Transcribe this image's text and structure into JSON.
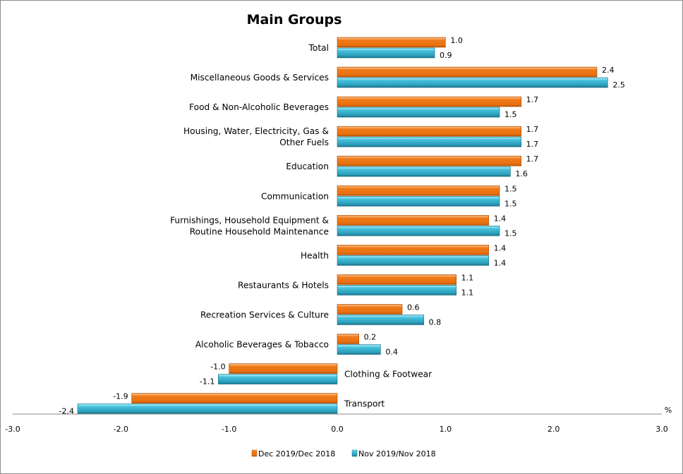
{
  "chart_data": {
    "type": "bar",
    "orientation": "horizontal",
    "title": "Main Groups",
    "xlabel": "",
    "ylabel": "",
    "unit_label": "%",
    "xlim": [
      -3.0,
      3.0
    ],
    "x_ticks": [
      "-3.0",
      "-2.0",
      "-1.0",
      "0.0",
      "1.0",
      "2.0",
      "3.0"
    ],
    "x_tick_values": [
      -3,
      -2,
      -1,
      0,
      1,
      2,
      3
    ],
    "grid": false,
    "legend_position": "bottom",
    "categories": [
      [
        "Total"
      ],
      [
        "Miscellaneous Goods & Services"
      ],
      [
        "Food &  Non-Alcoholic Beverages"
      ],
      [
        "Housing, Water, Electricity, Gas &",
        "Other Fuels"
      ],
      [
        "Education"
      ],
      [
        "Communication"
      ],
      [
        "Furnishings, Household Equipment &",
        "Routine Household Maintenance"
      ],
      [
        "Health"
      ],
      [
        "Restaurants & Hotels"
      ],
      [
        "Recreation Services & Culture"
      ],
      [
        "Alcoholic Beverages  & Tobacco"
      ],
      [
        "Clothing & Footwear"
      ],
      [
        "Transport"
      ]
    ],
    "series": [
      {
        "name": "Dec 2019/Dec 2018",
        "color": "#f07a1a",
        "values": [
          1.0,
          2.4,
          1.7,
          1.7,
          1.7,
          1.5,
          1.4,
          1.4,
          1.1,
          0.6,
          0.2,
          -1.0,
          -1.9
        ],
        "labels": [
          "1.0",
          "2.4",
          "1.7",
          "1.7",
          "1.7",
          "1.5",
          "1.4",
          "1.4",
          "1.1",
          "0.6",
          "0.2",
          "-1.0",
          "-1.9"
        ]
      },
      {
        "name": "Nov 2019/Nov 2018",
        "color": "#2fa3c0",
        "values": [
          0.9,
          2.5,
          1.5,
          1.7,
          1.6,
          1.5,
          1.5,
          1.4,
          1.1,
          0.8,
          0.4,
          -1.1,
          -2.4
        ],
        "labels": [
          "0.9",
          "2.5",
          "1.5",
          "1.7",
          "1.6",
          "1.5",
          "1.5",
          "1.4",
          "1.1",
          "0.8",
          "0.4",
          "-1.1",
          "-2.4"
        ]
      }
    ]
  }
}
